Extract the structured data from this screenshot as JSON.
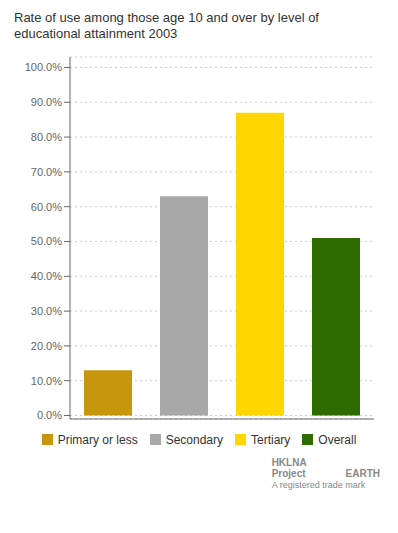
{
  "chart_data": {
    "type": "bar",
    "title": "Rate of use among those age 10 and over by level of  educational attainment 2003",
    "categories": [
      "Primary or less",
      "Secondary",
      "Tertiary",
      "Overall"
    ],
    "values": [
      13.0,
      63.0,
      87.0,
      51.0
    ],
    "colors": [
      "#C8960C",
      "#A8A8A8",
      "#FFD700",
      "#2E6B00"
    ],
    "ylim": [
      -1,
      103
    ],
    "yticks": [
      {
        "value": 0,
        "label": "0.0%"
      },
      {
        "value": 10,
        "label": "10.0%"
      },
      {
        "value": 20,
        "label": "20.0%"
      },
      {
        "value": 30,
        "label": "30.0%"
      },
      {
        "value": 40,
        "label": "40.0%"
      },
      {
        "value": 50,
        "label": "50.0%"
      },
      {
        "value": 60,
        "label": "60.0%"
      },
      {
        "value": 70,
        "label": "70.0%"
      },
      {
        "value": 80,
        "label": "80.0%"
      },
      {
        "value": 90,
        "label": "90.0%"
      },
      {
        "value": 100,
        "label": "100.0%"
      }
    ],
    "grid": true,
    "legend": "bottom",
    "tick_labels": "y",
    "annotations": [
      "HKLNA",
      "Project",
      "EARTH",
      "A registered trade mark"
    ]
  }
}
